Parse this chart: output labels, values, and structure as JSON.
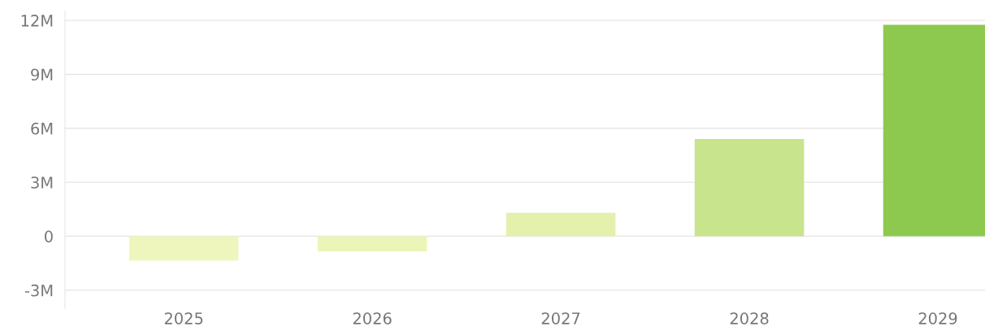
{
  "chart_data": {
    "type": "bar",
    "categories": [
      "2025",
      "2026",
      "2027",
      "2028",
      "2029"
    ],
    "values": [
      -1.35,
      -0.85,
      1.3,
      5.4,
      11.75
    ],
    "colors": [
      "#eff6bd",
      "#ecf5b8",
      "#e3f1ac",
      "#c8e48c",
      "#8cc94e"
    ],
    "ylim": [
      -4,
      12.5
    ],
    "yticks": [
      {
        "value": -3,
        "label": "-3M"
      },
      0,
      {
        "value": 3,
        "label": "3M"
      },
      {
        "value": 6,
        "label": "6M"
      },
      {
        "value": 9,
        "label": "9M"
      },
      {
        "value": 12,
        "label": "12M"
      }
    ],
    "grid": "y"
  }
}
